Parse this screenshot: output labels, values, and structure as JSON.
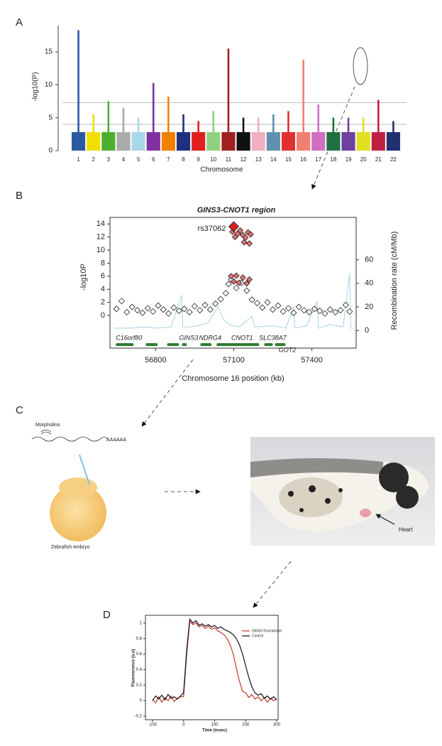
{
  "panel_labels": [
    "A",
    "B",
    "C",
    "D"
  ],
  "chart_data": [
    {
      "type": "manhattan",
      "ylabel": "-log10(P)",
      "xlabel": "Chromosome",
      "categories": [
        "1",
        "2",
        "3",
        "4",
        "5",
        "6",
        "7",
        "8",
        "9",
        "10",
        "11",
        "12",
        "13",
        "14",
        "15",
        "16",
        "17",
        "18",
        "19",
        "20",
        "21",
        "22"
      ],
      "values": [
        18.3,
        5.5,
        7.5,
        6.5,
        5,
        10.3,
        8.2,
        5.5,
        4.5,
        6,
        15.5,
        5,
        5,
        5.5,
        6,
        13.8,
        7,
        5,
        5,
        5,
        7.7,
        4.5
      ],
      "colors": [
        "#2c5aa0",
        "#f0e000",
        "#4caf30",
        "#aaaaaa",
        "#a8d8e8",
        "#8030a0",
        "#f08000",
        "#203080",
        "#e02020",
        "#90d080",
        "#a02020",
        "#111111",
        "#f0b0c0",
        "#6090b0",
        "#e03030",
        "#f08070",
        "#d070c0",
        "#207040",
        "#7040a0",
        "#e0e020",
        "#c02040",
        "#203070"
      ],
      "ylim": [
        0,
        19
      ],
      "yticks": [
        0,
        5,
        10,
        15
      ],
      "hlines": [
        7.3,
        4
      ]
    },
    {
      "type": "regional",
      "title": "GINS3-CNOT1 region",
      "xlabel": "Chromosome 16 position (kb)",
      "ylabel": "-log10P",
      "y2label": "Recombination rate (cM/Mb)",
      "xlim": [
        56625,
        57570
      ],
      "xticks": [
        56800,
        57100,
        57400
      ],
      "ylim": [
        -5,
        15
      ],
      "yticks": [
        0,
        2,
        4,
        6,
        8,
        10,
        12,
        14
      ],
      "y2lim": [
        -15,
        96
      ],
      "y2ticks": [
        0,
        20,
        40,
        60
      ],
      "series": [
        {
          "color": "#ffffff",
          "x": [
            56650,
            56670,
            56690,
            56710,
            56730,
            56750,
            56770,
            56790,
            56810,
            56830,
            56850,
            56870,
            56890,
            56910,
            56930,
            56950,
            56970,
            56990,
            57010,
            57030,
            57050,
            57070,
            57080,
            57090,
            57110,
            57130,
            57150,
            57170,
            57190,
            57210,
            57230,
            57250,
            57270,
            57290,
            57310,
            57330,
            57350,
            57370,
            57390,
            57410,
            57430,
            57450,
            57470,
            57490,
            57510,
            57530,
            57545
          ],
          "values": [
            1.0,
            2.2,
            0.5,
            1.3,
            0.8,
            0.4,
            1.1,
            0.6,
            1.5,
            0.9,
            0.3,
            1.2,
            0.7,
            1.0,
            0.5,
            1.4,
            0.8,
            1.6,
            0.9,
            1.8,
            2.5,
            3.4,
            4.8,
            5.5,
            4.2,
            5.0,
            3.8,
            2.4,
            1.9,
            1.2,
            2.0,
            0.9,
            1.5,
            0.6,
            1.1,
            0.4,
            1.3,
            0.8,
            0.5,
            1.0,
            0.7,
            0.3,
            0.9,
            0.5,
            0.8,
            1.6,
            0.6
          ]
        },
        {
          "color": "#e07070",
          "x": [
            57090,
            57100,
            57110,
            57120,
            57135,
            57150,
            57160,
            57095,
            57105,
            57115,
            57125,
            57135,
            57145,
            57155,
            57165,
            57140,
            57160
          ],
          "values": [
            6.0,
            5.2,
            6.1,
            5.0,
            5.8,
            4.9,
            5.5,
            12.8,
            12.0,
            12.5,
            13.0,
            12.3,
            11.9,
            12.7,
            12.4,
            11.2,
            11.0
          ]
        },
        {
          "color": "#d42020",
          "x": [
            57100
          ],
          "values": [
            13.6
          ],
          "labels": [
            "rs37062"
          ]
        },
        {
          "axis": "y2",
          "color": "#a8d4e0",
          "x": [
            56640,
            56700,
            56760,
            56800,
            56860,
            56900,
            56905,
            56960,
            57000,
            57040,
            57060,
            57080,
            57120,
            57170,
            57180,
            57250,
            57300,
            57330,
            57335,
            57380,
            57420,
            57425,
            57470,
            57520,
            57545,
            57550,
            57560
          ],
          "values": [
            2,
            2,
            3,
            2,
            3,
            30,
            2,
            4,
            6,
            20,
            10,
            5,
            3,
            12,
            3,
            4,
            2,
            20,
            2,
            4,
            25,
            2,
            5,
            3,
            48,
            2,
            2
          ]
        }
      ],
      "genes": [
        {
          "name": "C16orf80",
          "start": 56647,
          "end": 56716
        },
        {
          "start": 56762,
          "end": 56808
        },
        {
          "start": 56844,
          "end": 56890
        },
        {
          "name": "GINS3",
          "start": 56901,
          "end": 56920
        },
        {
          "name": "NDRG4",
          "start": 56972,
          "end": 57015
        },
        {
          "name": "CNOT1",
          "start": 57034,
          "end": 57198
        },
        {
          "name": "SLC38A7",
          "start": 57217,
          "end": 57250
        },
        {
          "name": "GOT2",
          "start": 57258,
          "end": 57299
        }
      ]
    },
    {
      "type": "line",
      "xlabel": "Time (msec)",
      "ylabel": "Fluorescence (a.u)",
      "x": [
        -100,
        -90,
        -80,
        -70,
        -60,
        -50,
        -40,
        -30,
        -20,
        -10,
        0,
        10,
        20,
        30,
        40,
        50,
        60,
        70,
        80,
        90,
        100,
        110,
        120,
        130,
        140,
        150,
        160,
        170,
        180,
        190,
        200,
        210,
        220,
        230,
        240,
        250,
        260,
        270,
        280,
        290,
        300
      ],
      "xlim": [
        -100,
        300
      ],
      "xticks": [
        -100,
        0,
        100,
        200,
        300
      ],
      "ylim": [
        -0.2,
        1.1
      ],
      "yticks": [
        -0.2,
        0,
        0.2,
        0.4,
        0.6,
        0.8,
        1
      ],
      "legend": "upper right",
      "series": [
        {
          "name": "GINS3 Knockdown",
          "color": "#c0392b",
          "values": [
            0.02,
            -0.03,
            0.05,
            -0.02,
            0.04,
            0.0,
            0.06,
            -0.01,
            0.03,
            0.05,
            0.05,
            0.6,
            1.02,
            0.98,
            1.0,
            0.95,
            0.97,
            0.93,
            0.96,
            0.92,
            0.94,
            0.9,
            0.88,
            0.85,
            0.8,
            0.72,
            0.6,
            0.42,
            0.25,
            0.12,
            0.1,
            0.04,
            0.08,
            0.02,
            0.05,
            0.0,
            0.04,
            -0.02,
            0.03,
            0.0,
            0.02
          ]
        },
        {
          "name": "Control",
          "color": "#111111",
          "values": [
            0.0,
            0.06,
            0.02,
            0.07,
            0.01,
            0.08,
            0.03,
            0.05,
            0.02,
            0.06,
            0.1,
            0.65,
            1.05,
            1.0,
            1.03,
            0.97,
            0.99,
            0.96,
            0.98,
            0.95,
            0.97,
            0.93,
            0.95,
            0.92,
            0.9,
            0.88,
            0.85,
            0.8,
            0.72,
            0.6,
            0.45,
            0.3,
            0.18,
            0.1,
            0.07,
            0.09,
            0.03,
            0.06,
            0.02,
            0.05,
            0.01
          ]
        }
      ]
    }
  ],
  "diagram": {
    "morpholino": "Morpholino",
    "poly_a": "AAAAAA",
    "embryo": "Zebrafish embryo",
    "heart": "Heart"
  }
}
